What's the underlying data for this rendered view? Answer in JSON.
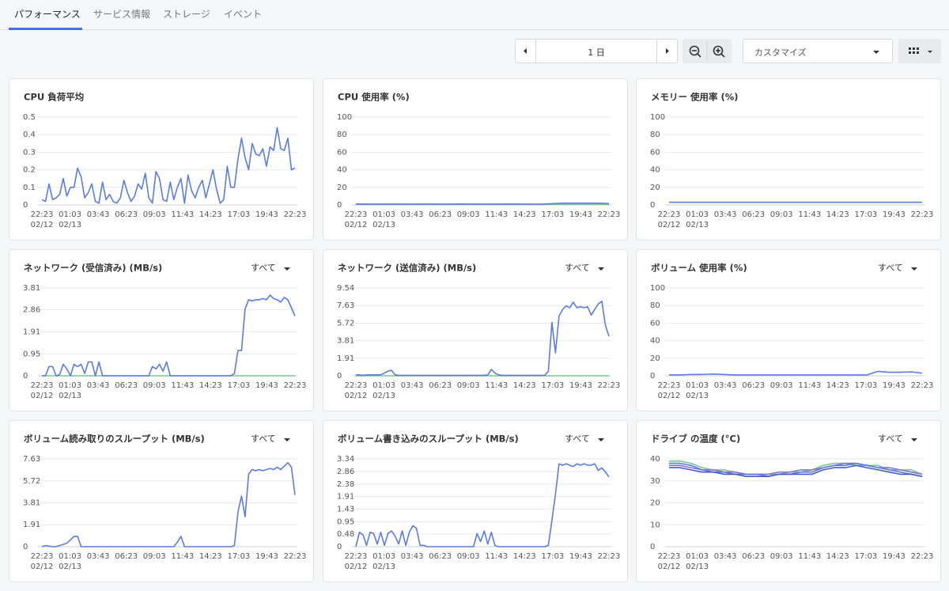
{
  "tabs": [
    "パフォーマンス",
    "サービス情報",
    "ストレージ",
    "イベント"
  ],
  "toolbar": {
    "period": "1 日",
    "customize": "カスタマイズ"
  },
  "time_axis": {
    "times": [
      "22:23",
      "01:03",
      "03:43",
      "06:23",
      "09:03",
      "11:43",
      "14:23",
      "17:03",
      "19:43",
      "22:23"
    ],
    "dates": [
      "02/12",
      "02/13"
    ]
  },
  "chart_data": [
    {
      "type": "line",
      "title": "CPU 負荷平均",
      "ylim": [
        0,
        0.5
      ],
      "yticks": [
        0,
        0.1,
        0.2,
        0.3,
        0.4,
        0.5
      ],
      "series": [
        {
          "color": "#5b7be5",
          "values": [
            0.03,
            0.02,
            0.12,
            0.03,
            0.04,
            0.06,
            0.15,
            0.05,
            0.1,
            0.1,
            0.21,
            0.16,
            0.04,
            0.07,
            0.12,
            0.02,
            0.01,
            0.13,
            0.03,
            0.06,
            0.02,
            0.01,
            0.04,
            0.14,
            0.07,
            0.02,
            0.05,
            0.12,
            0.09,
            0.18,
            0.04,
            0.01,
            0.19,
            0.15,
            0.03,
            0.02,
            0.13,
            0.03,
            0.1,
            0.15,
            0.01,
            0.17,
            0.08,
            0.04,
            0.1,
            0.14,
            0.04,
            0.12,
            0.2,
            0.09,
            0.01,
            0.03,
            0.22,
            0.1,
            0.1,
            0.26,
            0.38,
            0.27,
            0.2,
            0.35,
            0.29,
            0.28,
            0.32,
            0.22,
            0.33,
            0.31,
            0.44,
            0.32,
            0.31,
            0.38,
            0.2,
            0.21
          ]
        }
      ]
    },
    {
      "type": "line",
      "title": "CPU 使用率 (%)",
      "ylim": [
        0,
        100
      ],
      "yticks": [
        0,
        20,
        40,
        60,
        80,
        100
      ],
      "series": [
        {
          "color": "#7cc68f",
          "values": [
            0.5,
            0.5,
            0.5,
            0.5,
            0.5,
            0.5,
            0.5,
            0.5,
            0.5,
            0.5,
            0.5,
            0.5
          ]
        },
        {
          "color": "#5b7be5",
          "values": [
            1,
            1,
            0.8,
            1,
            1,
            0.8,
            1,
            1,
            0.8,
            1,
            1,
            1,
            0.8,
            1,
            1,
            1,
            0.8,
            1,
            1.5,
            2,
            2,
            2,
            2,
            1.5
          ]
        }
      ]
    },
    {
      "type": "line",
      "title": "メモリー 使用率 (%)",
      "ylim": [
        0,
        100
      ],
      "yticks": [
        0,
        20,
        40,
        60,
        80,
        100
      ],
      "series": [
        {
          "color": "#5b7be5",
          "values": [
            3,
            3,
            3,
            3,
            3,
            3,
            3,
            3,
            3,
            3,
            3,
            3
          ]
        }
      ]
    },
    {
      "type": "line",
      "title": "ネットワーク (受信済み) (MB/s)",
      "filter": "すべて",
      "ylim": [
        0,
        3.81
      ],
      "yticks": [
        0,
        0.95,
        1.91,
        2.86,
        3.81
      ],
      "series": [
        {
          "color": "#7cc68f",
          "values": [
            0,
            0,
            0,
            0,
            0,
            0,
            0,
            0,
            0,
            0,
            0,
            0
          ]
        },
        {
          "color": "#5b7be5",
          "values": [
            0,
            0,
            0.4,
            0.4,
            0,
            0.05,
            0.5,
            0.3,
            0,
            0.5,
            0.4,
            0.5,
            0.1,
            0.6,
            0.6,
            0,
            0.6,
            0,
            0,
            0,
            0,
            0,
            0,
            0,
            0,
            0,
            0,
            0,
            0,
            0,
            0,
            0.4,
            0.3,
            0.5,
            0.2,
            0.6,
            0,
            0,
            0,
            0,
            0,
            0,
            0,
            0,
            0,
            0,
            0,
            0,
            0,
            0,
            0,
            0,
            0,
            0,
            0.1,
            1.1,
            1.1,
            2.9,
            3.3,
            3.25,
            3.3,
            3.3,
            3.35,
            3.3,
            3.5,
            3.35,
            3.3,
            3.2,
            3.4,
            3.3,
            2.95,
            2.6
          ]
        }
      ]
    },
    {
      "type": "line",
      "title": "ネットワーク (送信済み) (MB/s)",
      "filter": "すべて",
      "ylim": [
        0,
        9.54
      ],
      "yticks": [
        0,
        1.91,
        3.81,
        5.72,
        7.63,
        9.54
      ],
      "series": [
        {
          "color": "#7cc68f",
          "values": [
            0,
            0,
            0,
            0,
            0,
            0,
            0,
            0,
            0,
            0,
            0,
            0
          ]
        },
        {
          "color": "#5b7be5",
          "values": [
            0.1,
            0.1,
            0.05,
            0.1,
            0.1,
            0.1,
            0.1,
            0.1,
            0.3,
            0.5,
            0.6,
            0.1,
            0.05,
            0.05,
            0.05,
            0.05,
            0.05,
            0.05,
            0.05,
            0.05,
            0.05,
            0.05,
            0.05,
            0.05,
            0.05,
            0.05,
            0.05,
            0.05,
            0.05,
            0.05,
            0.05,
            0.05,
            0.05,
            0.05,
            0.05,
            0.05,
            0.05,
            0.1,
            0.7,
            0.3,
            0.1,
            0.05,
            0.05,
            0.05,
            0.05,
            0.05,
            0.05,
            0.05,
            0.05,
            0.05,
            0.05,
            0.05,
            0.05,
            0.05,
            0.5,
            5.8,
            2.5,
            6.5,
            7.2,
            7.6,
            7.4,
            8.0,
            7.4,
            7.5,
            7.4,
            7.5,
            6.6,
            7.2,
            7.8,
            8.1,
            5.5,
            4.3
          ]
        }
      ]
    },
    {
      "type": "line",
      "title": "ボリューム 使用率 (%)",
      "filter": "すべて",
      "ylim": [
        0,
        100
      ],
      "yticks": [
        0,
        20,
        40,
        60,
        80,
        100
      ],
      "series": [
        {
          "color": "#5b7be5",
          "values": [
            1,
            1,
            1.5,
            1.5,
            2,
            1.5,
            1,
            1,
            1,
            1,
            1,
            1,
            1,
            1,
            1,
            1,
            1,
            1,
            1,
            5,
            4,
            4,
            4.5,
            3
          ]
        }
      ]
    },
    {
      "type": "line",
      "title": "ボリューム読み取りのスループット (MB/s)",
      "filter": "すべて",
      "ylim": [
        0,
        7.63
      ],
      "yticks": [
        0,
        1.91,
        3.81,
        5.72,
        7.63
      ],
      "series": [
        {
          "color": "#5b7be5",
          "values": [
            0,
            0.1,
            0.05,
            0,
            0,
            0.1,
            0.2,
            0.3,
            0.6,
            0.9,
            0.9,
            0,
            0,
            0,
            0,
            0,
            0,
            0,
            0,
            0,
            0,
            0,
            0,
            0,
            0,
            0,
            0,
            0,
            0,
            0,
            0,
            0,
            0,
            0,
            0,
            0,
            0,
            0,
            0.4,
            0.9,
            0,
            0,
            0,
            0,
            0,
            0,
            0,
            0,
            0,
            0,
            0,
            0,
            0,
            0,
            0.1,
            3.0,
            4.4,
            2.6,
            6.3,
            6.7,
            6.6,
            6.7,
            6.6,
            6.7,
            6.8,
            6.7,
            6.9,
            6.7,
            7.0,
            7.3,
            6.9,
            4.5
          ]
        }
      ]
    },
    {
      "type": "line",
      "title": "ボリューム書き込みのスループット (MB/s)",
      "filter": "すべて",
      "ylim": [
        0,
        3.34
      ],
      "yticks": [
        0,
        0.48,
        0.95,
        1.43,
        1.91,
        2.38,
        2.86,
        3.34
      ],
      "series": [
        {
          "color": "#5b7be5",
          "values": [
            0,
            0.55,
            0.45,
            0.05,
            0.55,
            0.5,
            0.1,
            0.55,
            0.05,
            0.5,
            0.6,
            0.4,
            0.1,
            0.6,
            0.05,
            0.55,
            0.8,
            0.7,
            0.05,
            0.05,
            0,
            0,
            0,
            0,
            0,
            0,
            0,
            0,
            0,
            0,
            0,
            0,
            0,
            0,
            0.5,
            0.2,
            0.6,
            0.1,
            0.55,
            0.05,
            0,
            0,
            0,
            0,
            0,
            0,
            0,
            0,
            0,
            0,
            0,
            0,
            0,
            0,
            0.05,
            1.0,
            2.0,
            3.15,
            3.1,
            3.15,
            3.1,
            3.05,
            3.15,
            3.1,
            3.15,
            3.1,
            3.1,
            3.15,
            2.9,
            3.0,
            2.85,
            2.65
          ]
        }
      ]
    },
    {
      "type": "line",
      "title": "ドライブ の温度 (°C)",
      "filter": "すべて",
      "ylim": [
        0,
        40
      ],
      "yticks": [
        0,
        10,
        20,
        30,
        40
      ],
      "series": [
        {
          "color": "#7cc68f",
          "values": [
            39,
            39,
            38,
            36,
            35,
            35,
            34,
            33,
            33,
            33,
            33,
            34,
            34,
            35,
            37,
            38,
            38,
            37,
            37,
            37,
            35,
            35,
            35,
            33
          ]
        },
        {
          "color": "#8a6fd6",
          "values": [
            37,
            37,
            36,
            35,
            35,
            34,
            34,
            33,
            33,
            33,
            34,
            34,
            35,
            35,
            36,
            37,
            38,
            38,
            37,
            36,
            36,
            35,
            34,
            33
          ]
        },
        {
          "color": "#5b7be5",
          "values": [
            38,
            38,
            37,
            35,
            34,
            34,
            33,
            33,
            33,
            32,
            33,
            33,
            34,
            34,
            36,
            37,
            37,
            38,
            37,
            36,
            35,
            34,
            33,
            32
          ]
        },
        {
          "color": "#4659c9",
          "values": [
            36,
            36,
            35,
            34,
            34,
            33,
            33,
            32,
            32,
            32,
            33,
            33,
            33,
            33,
            35,
            36,
            36,
            37,
            36,
            35,
            34,
            33,
            33,
            32
          ]
        }
      ]
    }
  ]
}
